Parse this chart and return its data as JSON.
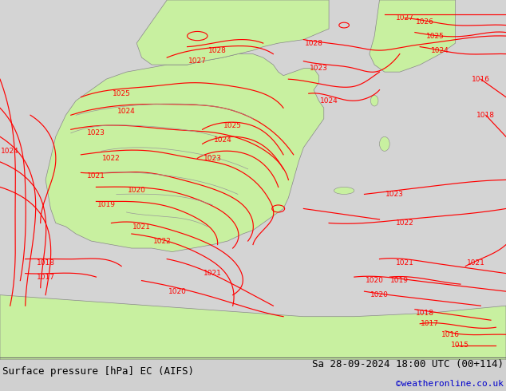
{
  "title_left": "Surface pressure [hPa] EC (AIFS)",
  "title_right": "Sa 28-09-2024 18:00 UTC (00+114)",
  "credit": "©weatheronline.co.uk",
  "bg_color": "#d0d0d0",
  "land_color": "#c8f0a0",
  "sea_color": "#d8d8d8",
  "contour_color_red": "#ff0000",
  "contour_color_gray": "#a0a0a0",
  "bottom_bar_color": "#e8e8e8",
  "text_color_black": "#000000",
  "text_color_blue": "#0000cc",
  "figsize": [
    6.34,
    4.9
  ],
  "dpi": 100,
  "font_size_label": 9,
  "font_size_credit": 8
}
